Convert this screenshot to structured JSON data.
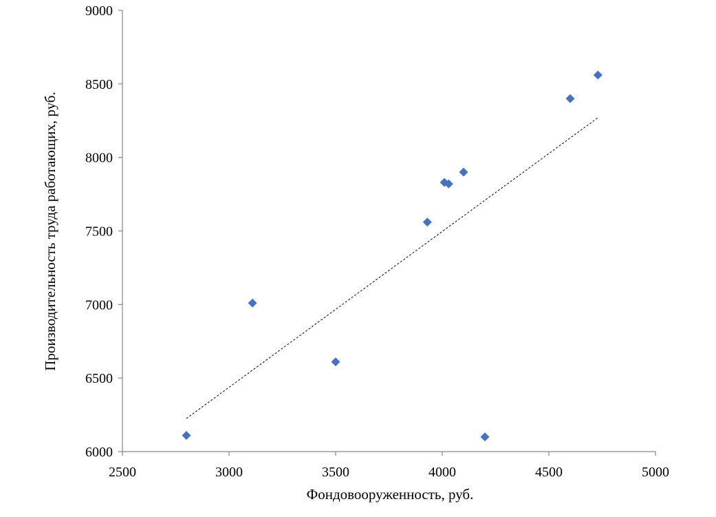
{
  "chart_data": {
    "type": "scatter",
    "title": "",
    "xlabel": "Фондовооруженность, руб.",
    "ylabel": "Производительность труда работающих, руб.",
    "xlim": [
      2500,
      5000
    ],
    "ylim": [
      6000,
      9000
    ],
    "x_ticks": [
      2500,
      3000,
      3500,
      4000,
      4500,
      5000
    ],
    "y_ticks": [
      6000,
      6500,
      7000,
      7500,
      8000,
      8500,
      9000
    ],
    "grid": false,
    "legend": "none",
    "series": [
      {
        "marker": "diamond",
        "color": "#4472C4",
        "points": [
          {
            "x": 2800,
            "y": 6110
          },
          {
            "x": 3110,
            "y": 7010
          },
          {
            "x": 3500,
            "y": 6610
          },
          {
            "x": 3930,
            "y": 7560
          },
          {
            "x": 4010,
            "y": 7830
          },
          {
            "x": 4030,
            "y": 7820
          },
          {
            "x": 4100,
            "y": 7900
          },
          {
            "x": 4200,
            "y": 6100
          },
          {
            "x": 4600,
            "y": 8400
          },
          {
            "x": 4730,
            "y": 8560
          }
        ]
      }
    ],
    "trendline": {
      "type": "linear",
      "style": "dotted",
      "color": "#000000",
      "from": {
        "x": 2800,
        "y": 6225
      },
      "to": {
        "x": 4730,
        "y": 8270
      }
    }
  }
}
